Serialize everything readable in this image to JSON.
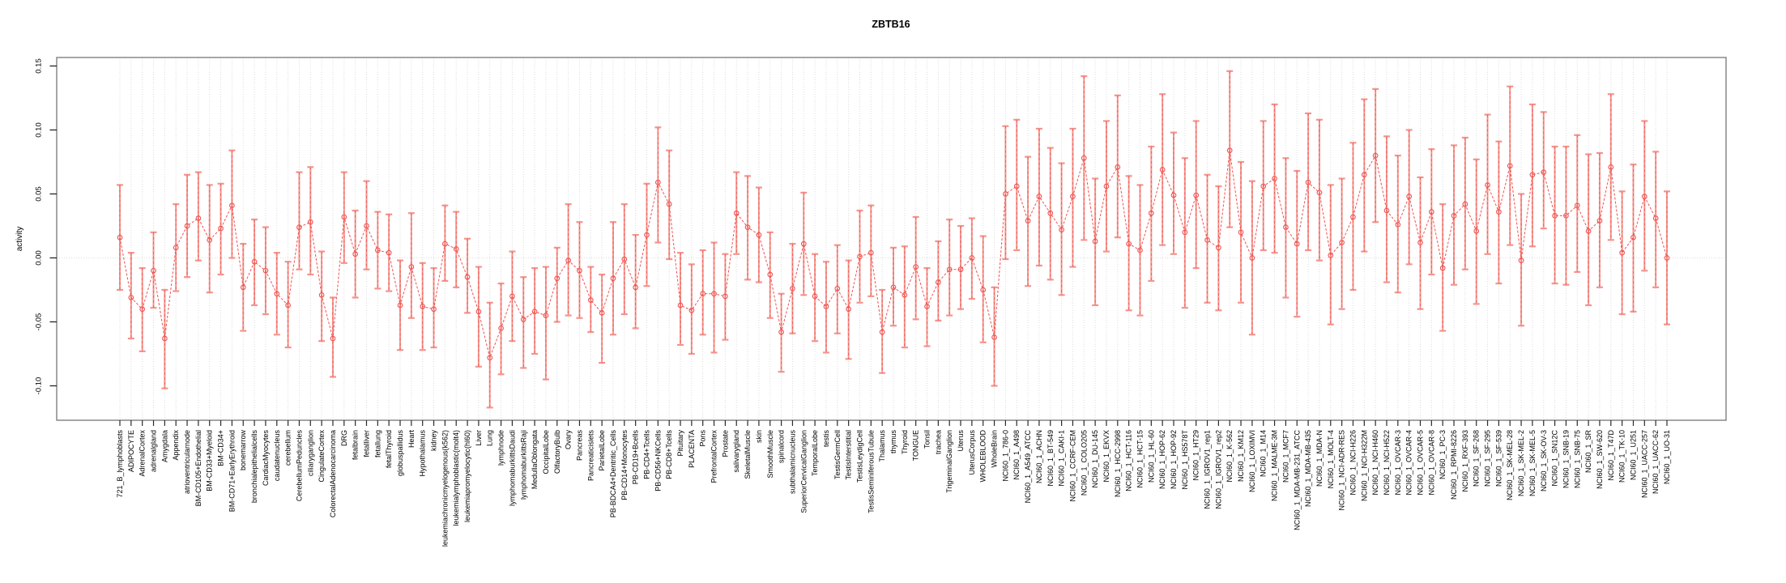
{
  "chart_data": {
    "type": "line",
    "title": "ZBTB16",
    "ylabel": "activity",
    "xlabel": "",
    "ylim": [
      -0.127,
      0.157
    ],
    "yticks": [
      -0.1,
      -0.05,
      0.0,
      0.05,
      0.1,
      0.15
    ],
    "grid": "vertical dotted line per category; horizontal dotted line at y=0",
    "legend": "none",
    "marker": "open-circle",
    "error_bars": true,
    "colors": {
      "point_line": "#ef5350",
      "error_bar": "#f4948d",
      "gridline": "#dcdcdc",
      "border": "#808080"
    },
    "categories": [
      "721_B_lymphoblasts",
      "ADIPOCYTE",
      "AdrenalCortex",
      "adrenalgland",
      "Amygdala",
      "Appendix",
      "atrioventricularnode",
      "BM-CD105+Endothelial",
      "BM-CD33+Myeloid",
      "BM-CD34+",
      "BM-CD71+EarlyErythroid",
      "bonemarrow",
      "bronchialepithelialcells",
      "CardiacMyocytes",
      "caudatenucleus",
      "cerebellum",
      "CerebellumPeduncles",
      "ciliaryganglion",
      "CingulateCortex",
      "ColorectalAdenocarcinoma",
      "DRG",
      "fetalbrain",
      "fetalliver",
      "fetallung",
      "fetalThyroid",
      "globuspallidus",
      "Heart",
      "Hypothalamus",
      "kidney",
      "leukemiachronicmyelogenous(k562)",
      "leukemialymphoblastic(molt4)",
      "leukemiapromyelocytic(hl60)",
      "Liver",
      "Lung",
      "lymphnode",
      "lymphomaburkittsDaudi",
      "lymphomaburkittsRaji",
      "MedullaOblongata",
      "OccipitalLobe",
      "OlfactoryBulb",
      "Ovary",
      "Pancreas",
      "Pancreaticislets",
      "ParietalLobe",
      "PB-BDCA4+Dentritic_Cells",
      "PB-CD14+Monocytes",
      "PB-CD19+Bcells",
      "PB-CD4+Tcells",
      "PB-CD56+NKCells",
      "PB-CD8+Tcells",
      "Pituitary",
      "PLACENTA",
      "Pons",
      "PrefrontalCortex",
      "Prostate",
      "salivarygland",
      "SkeletalMuscle",
      "skin",
      "SmoothMuscle",
      "spinalcord",
      "subthalamicnucleus",
      "SuperiorCervicalGanglion",
      "TemporalLobe",
      "testis",
      "TestisGermCell",
      "TestisInterstitial",
      "TestisLeydigCell",
      "TestisSeminiferousTubule",
      "Thalamus",
      "thymus",
      "Thyroid",
      "TONGUE",
      "Tonsil",
      "trachea",
      "TrigeminalGanglion",
      "Uterus",
      "UterusCorpus",
      "WHOLEBLOOD",
      "WholeBrain",
      "NCI60_1_786-0",
      "NCI60_1_A498",
      "NCI60_1_A549_ATCC",
      "NCI60_1_ACHN",
      "NCI60_1_BT-549",
      "NCI60_1_CAKI-1",
      "NCI60_1_CCRF-CEM",
      "NCI60_1_COLO205",
      "NCI60_1_DU-145",
      "NCI60_1_EKVX",
      "NCI60_1_HCC-2998",
      "NCI60_1_HCT-116",
      "NCI60_1_HCT-15",
      "NCI60_1_HL-60",
      "NCI60_1_HOP-62",
      "NCI60_1_HOP-92",
      "NCI60_1_HS578T",
      "NCI60_1_HT29",
      "NCI60_1_IGROV1_rep1",
      "NCI60_1_IGROV1_rep2",
      "NCI60_1_K-562",
      "NCI60_1_KM12",
      "NCI60_1_LOXIMVI",
      "NCI60_1_M14",
      "NCI60_1_MALME-3M",
      "NCI60_1_MCF7",
      "NCI60_1_MDA-MB-231_ATCC",
      "NCI60_1_MDA-MB-435",
      "NCI60_1_MDA-N",
      "NCI60_1_MOLT-4",
      "NCI60_1_NCI-ADR-RES",
      "NCI60_1_NCI-H226",
      "NCI60_1_NCI-H322M",
      "NCI60_1_NCI-H460",
      "NCI60_1_NCI-H522",
      "NCI60_1_OVCAR-3",
      "NCI60_1_OVCAR-4",
      "NCI60_1_OVCAR-5",
      "NCI60_1_OVCAR-8",
      "NCI60_1_PC-3",
      "NCI60_1_RPMI-8226",
      "NCI60_1_RXF-393",
      "NCI60_1_SF-268",
      "NCI60_1_SF-295",
      "NCI60_1_SF-539",
      "NCI60_1_SK-MEL-28",
      "NCI60_1_SK-MEL-2",
      "NCI60_1_SK-MEL-5",
      "NCI60_1_SK-OV-3",
      "NCI60_1_SN12C",
      "NCI60_1_SNB-19",
      "NCI60_1_SNB-75",
      "NCI60_1_SR",
      "NCI60_1_SW-620",
      "NCI60_1_T47D",
      "NCI60_1_TK-10",
      "NCI60_1_U251",
      "NCI60_1_UACC-257",
      "NCI60_1_UACC-62",
      "NCI60_1_UO-31"
    ],
    "series": [
      {
        "name": "activity",
        "values": [
          0.016,
          -0.031,
          -0.04,
          -0.01,
          -0.063,
          0.008,
          0.025,
          0.031,
          0.014,
          0.023,
          0.041,
          -0.023,
          -0.003,
          -0.01,
          -0.028,
          -0.037,
          0.024,
          0.028,
          -0.029,
          -0.063,
          0.032,
          0.003,
          0.025,
          0.006,
          0.004,
          -0.037,
          -0.007,
          -0.038,
          -0.04,
          0.011,
          0.007,
          -0.015,
          -0.042,
          -0.078,
          -0.055,
          -0.03,
          -0.048,
          -0.042,
          -0.045,
          -0.016,
          -0.002,
          -0.01,
          -0.033,
          -0.043,
          -0.016,
          -0.001,
          -0.023,
          0.018,
          0.059,
          0.042,
          -0.037,
          -0.041,
          -0.028,
          -0.028,
          -0.03,
          0.035,
          0.024,
          0.018,
          -0.013,
          -0.058,
          -0.024,
          0.011,
          -0.03,
          -0.038,
          -0.024,
          -0.04,
          0.001,
          0.004,
          -0.058,
          -0.023,
          -0.029,
          -0.007,
          -0.038,
          -0.019,
          -0.009,
          -0.009,
          0.0,
          -0.025,
          -0.062,
          0.05,
          0.056,
          0.029,
          0.048,
          0.035,
          0.022,
          0.048,
          0.078,
          0.013,
          0.056,
          0.071,
          0.011,
          0.006,
          0.035,
          0.069,
          0.049,
          0.02,
          0.049,
          0.014,
          0.008,
          0.084,
          0.02,
          0.0,
          0.056,
          0.062,
          0.024,
          0.011,
          0.059,
          0.051,
          0.002,
          0.012,
          0.032,
          0.065,
          0.08,
          0.037,
          0.026,
          0.048,
          0.012,
          0.036,
          -0.008,
          0.033,
          0.042,
          0.021,
          0.057,
          0.036,
          0.072,
          -0.002,
          0.065,
          0.067,
          0.033,
          0.033,
          0.041,
          0.021,
          0.029,
          0.071,
          0.004,
          0.016,
          0.048,
          0.031,
          0.0
        ],
        "lo": [
          -0.025,
          -0.063,
          -0.073,
          -0.039,
          -0.102,
          -0.026,
          -0.015,
          -0.002,
          -0.027,
          -0.013,
          0.0,
          -0.057,
          -0.037,
          -0.044,
          -0.06,
          -0.07,
          -0.009,
          -0.013,
          -0.065,
          -0.093,
          -0.004,
          -0.031,
          -0.009,
          -0.024,
          -0.026,
          -0.072,
          -0.047,
          -0.072,
          -0.07,
          -0.018,
          -0.023,
          -0.043,
          -0.085,
          -0.117,
          -0.091,
          -0.065,
          -0.086,
          -0.075,
          -0.095,
          -0.05,
          -0.045,
          -0.047,
          -0.058,
          -0.082,
          -0.06,
          -0.044,
          -0.055,
          -0.022,
          0.012,
          -0.001,
          -0.068,
          -0.075,
          -0.06,
          -0.074,
          -0.064,
          0.003,
          -0.017,
          -0.019,
          -0.047,
          -0.089,
          -0.059,
          -0.029,
          -0.065,
          -0.074,
          -0.059,
          -0.079,
          -0.035,
          -0.03,
          -0.09,
          -0.053,
          -0.07,
          -0.048,
          -0.069,
          -0.049,
          -0.045,
          -0.04,
          -0.032,
          -0.066,
          -0.1,
          -0.001,
          0.006,
          -0.022,
          -0.006,
          -0.017,
          -0.029,
          -0.007,
          0.014,
          -0.037,
          0.005,
          0.016,
          -0.041,
          -0.045,
          -0.018,
          0.01,
          0.003,
          -0.039,
          -0.008,
          -0.035,
          -0.041,
          0.024,
          -0.035,
          -0.06,
          0.006,
          0.004,
          -0.031,
          -0.046,
          0.006,
          -0.002,
          -0.052,
          -0.04,
          -0.025,
          0.005,
          0.028,
          -0.019,
          -0.027,
          -0.005,
          -0.04,
          -0.013,
          -0.057,
          -0.021,
          -0.009,
          -0.036,
          0.003,
          -0.02,
          0.01,
          -0.053,
          0.009,
          0.023,
          -0.02,
          -0.021,
          -0.011,
          -0.037,
          -0.023,
          0.014,
          -0.044,
          -0.042,
          -0.01,
          -0.023,
          -0.052
        ],
        "hi": [
          0.057,
          0.004,
          -0.008,
          0.02,
          -0.025,
          0.042,
          0.065,
          0.067,
          0.057,
          0.058,
          0.084,
          0.011,
          0.03,
          0.024,
          0.004,
          -0.003,
          0.067,
          0.071,
          0.005,
          -0.031,
          0.067,
          0.037,
          0.06,
          0.036,
          0.034,
          -0.002,
          0.035,
          -0.004,
          -0.008,
          0.041,
          0.036,
          0.015,
          -0.007,
          -0.035,
          -0.02,
          0.005,
          -0.015,
          -0.008,
          -0.007,
          0.008,
          0.042,
          0.028,
          -0.007,
          -0.013,
          0.028,
          0.042,
          0.018,
          0.058,
          0.102,
          0.084,
          0.004,
          -0.005,
          0.006,
          0.012,
          0.003,
          0.067,
          0.064,
          0.055,
          0.02,
          -0.028,
          0.011,
          0.051,
          0.003,
          -0.003,
          0.01,
          -0.002,
          0.037,
          0.041,
          -0.025,
          0.008,
          0.009,
          0.032,
          -0.008,
          0.013,
          0.03,
          0.025,
          0.031,
          0.017,
          -0.023,
          0.103,
          0.108,
          0.079,
          0.101,
          0.086,
          0.074,
          0.101,
          0.142,
          0.062,
          0.107,
          0.127,
          0.064,
          0.057,
          0.087,
          0.128,
          0.098,
          0.078,
          0.107,
          0.065,
          0.056,
          0.146,
          0.075,
          0.06,
          0.107,
          0.12,
          0.078,
          0.068,
          0.113,
          0.108,
          0.057,
          0.062,
          0.09,
          0.124,
          0.132,
          0.095,
          0.08,
          0.1,
          0.063,
          0.085,
          0.042,
          0.088,
          0.094,
          0.077,
          0.112,
          0.091,
          0.134,
          0.05,
          0.12,
          0.114,
          0.087,
          0.087,
          0.096,
          0.081,
          0.082,
          0.128,
          0.052,
          0.073,
          0.107,
          0.083,
          0.052
        ]
      }
    ]
  }
}
